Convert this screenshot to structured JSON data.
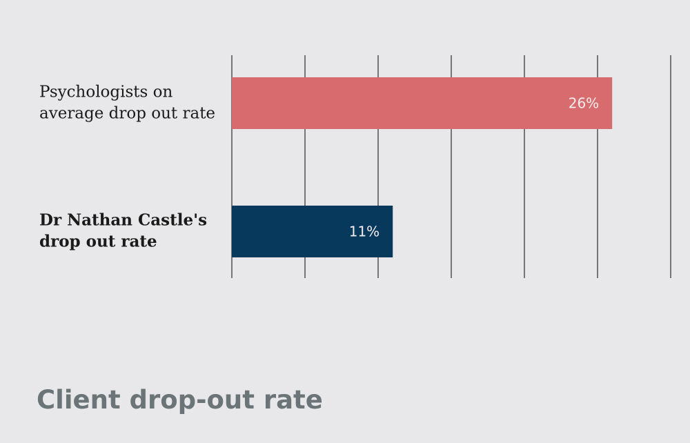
{
  "caption": "Client drop-out rate",
  "chart_data": {
    "type": "bar",
    "orientation": "horizontal",
    "categories": [
      [
        "Psychologists on",
        "average drop out rate"
      ],
      [
        "Dr Nathan Castle's",
        "drop out rate"
      ]
    ],
    "values": [
      26,
      11
    ],
    "data_labels": [
      "26%",
      "11%"
    ],
    "bold_categories": [
      false,
      true
    ],
    "colors": [
      "#d86b6d",
      "#07395c"
    ],
    "xlim": [
      0,
      30
    ],
    "x_gridline_step": 5,
    "grid": true,
    "legend": "none",
    "title": "",
    "xlabel": "",
    "ylabel": ""
  }
}
